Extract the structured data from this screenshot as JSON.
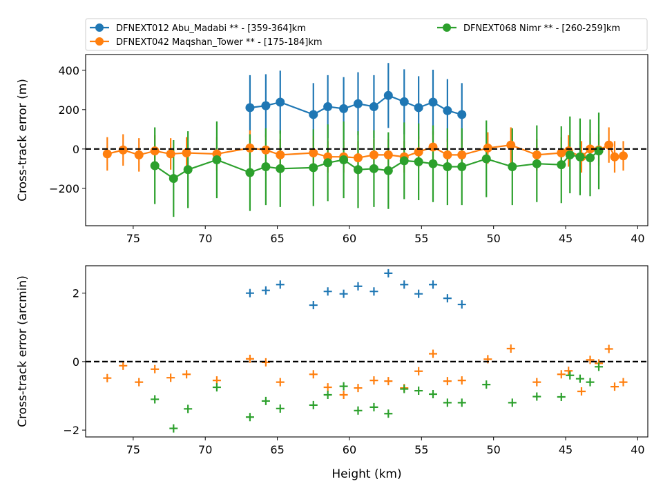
{
  "chart_data": [
    {
      "type": "line",
      "panel": "top",
      "ylabel": "Cross-track error (m)",
      "xlabel": "",
      "x_inverted": true,
      "xlim": [
        78.3,
        39.3
      ],
      "ylim": [
        -390,
        480
      ],
      "xticks": [
        75,
        70,
        65,
        60,
        55,
        50,
        45,
        40
      ],
      "yticks": [
        -200,
        0,
        200,
        400
      ],
      "ytick_labels": [
        "−200",
        "0",
        "200",
        "400"
      ],
      "zero_line": true,
      "legend": {
        "placement": "top",
        "columns": 2,
        "entries": [
          {
            "series": 0,
            "label": "DFNEXT012 Abu_Madabi **  - [359-364]km"
          },
          {
            "series": 1,
            "label": "DFNEXT042 Maqshan_Tower **  - [175-184]km"
          },
          {
            "series": 2,
            "label": "DFNEXT068 Nimr **  - [260-259]km"
          }
        ]
      },
      "series": [
        {
          "name": "DFNEXT012 Abu_Madabi **  - [359-364]km",
          "color": "#1f77b4",
          "x": [
            66.9,
            65.8,
            64.8,
            62.5,
            61.5,
            60.4,
            59.4,
            58.3,
            57.3,
            56.2,
            55.2,
            54.2,
            53.2,
            52.2
          ],
          "y": [
            210,
            220,
            238,
            175,
            215,
            205,
            230,
            215,
            272,
            240,
            210,
            238,
            195,
            175
          ],
          "err": [
            165,
            160,
            160,
            160,
            160,
            160,
            160,
            160,
            165,
            165,
            160,
            165,
            160,
            160
          ]
        },
        {
          "name": "DFNEXT042 Maqshan_Tower **  - [175-184]km",
          "color": "#ff7f0e",
          "x": [
            76.8,
            75.7,
            74.6,
            73.5,
            72.4,
            71.3,
            69.2,
            66.9,
            65.8,
            64.8,
            62.5,
            61.5,
            60.4,
            59.4,
            58.3,
            57.3,
            56.2,
            55.2,
            54.2,
            53.2,
            52.2,
            50.4,
            48.8,
            47.0,
            45.3,
            44.8,
            43.9,
            43.3,
            42.7,
            42.0,
            41.6,
            41.0
          ],
          "y": [
            -25,
            -5,
            -30,
            -10,
            -25,
            -20,
            -25,
            5,
            -5,
            -30,
            -20,
            -40,
            -40,
            -45,
            -30,
            -30,
            -40,
            -15,
            10,
            -30,
            -30,
            5,
            20,
            -30,
            -20,
            -10,
            -40,
            0,
            -5,
            20,
            -40,
            -35
          ],
          "err": [
            85,
            80,
            85,
            80,
            80,
            80,
            85,
            90,
            80,
            80,
            85,
            80,
            80,
            85,
            80,
            80,
            80,
            80,
            80,
            80,
            80,
            80,
            90,
            80,
            80,
            80,
            80,
            80,
            80,
            90,
            80,
            75
          ]
        },
        {
          "name": "DFNEXT068 Nimr **  - [260-259]km",
          "color": "#2ca02c",
          "x": [
            73.5,
            72.2,
            71.2,
            69.2,
            66.9,
            65.8,
            64.8,
            62.5,
            61.5,
            60.4,
            59.4,
            58.3,
            57.3,
            56.2,
            55.2,
            54.2,
            53.2,
            52.2,
            50.5,
            48.7,
            47.0,
            45.3,
            44.7,
            44.0,
            43.3,
            42.7
          ],
          "y": [
            -85,
            -150,
            -105,
            -55,
            -120,
            -90,
            -100,
            -95,
            -70,
            -55,
            -105,
            -100,
            -110,
            -60,
            -65,
            -75,
            -90,
            -90,
            -50,
            -90,
            -75,
            -80,
            -30,
            -40,
            -45,
            -10
          ],
          "err": [
            195,
            195,
            195,
            195,
            195,
            195,
            195,
            195,
            195,
            195,
            195,
            195,
            195,
            195,
            195,
            195,
            195,
            195,
            195,
            195,
            195,
            195,
            195,
            195,
            195,
            195
          ]
        }
      ]
    },
    {
      "type": "scatter",
      "panel": "bottom",
      "ylabel": "Cross-track error (arcmin)",
      "xlabel": "Height (km)",
      "x_inverted": true,
      "xlim": [
        78.3,
        39.3
      ],
      "ylim": [
        -2.2,
        2.8
      ],
      "xticks": [
        75,
        70,
        65,
        60,
        55,
        50,
        45,
        40
      ],
      "yticks": [
        -2,
        0,
        2
      ],
      "ytick_labels": [
        "−2",
        "0",
        "2"
      ],
      "zero_line": true,
      "marker": "+",
      "series": [
        {
          "color": "#1f77b4",
          "x": [
            66.9,
            65.8,
            64.8,
            62.5,
            61.5,
            60.4,
            59.4,
            58.3,
            57.3,
            56.2,
            55.2,
            54.2,
            53.2,
            52.2
          ],
          "y": [
            2.0,
            2.08,
            2.25,
            1.65,
            2.05,
            1.98,
            2.2,
            2.05,
            2.58,
            2.25,
            1.98,
            2.25,
            1.85,
            1.67
          ]
        },
        {
          "color": "#ff7f0e",
          "x": [
            76.8,
            75.7,
            74.6,
            73.5,
            72.4,
            71.3,
            69.2,
            66.9,
            65.8,
            64.8,
            62.5,
            61.5,
            60.4,
            59.4,
            58.3,
            57.3,
            56.2,
            55.2,
            54.2,
            53.2,
            52.2,
            50.4,
            48.8,
            47.0,
            45.3,
            44.8,
            43.9,
            43.3,
            42.7,
            42.0,
            41.6,
            41.0
          ],
          "y": [
            -0.48,
            -0.12,
            -0.6,
            -0.22,
            -0.47,
            -0.37,
            -0.55,
            0.08,
            -0.02,
            -0.6,
            -0.37,
            -0.75,
            -0.97,
            -0.77,
            -0.55,
            -0.57,
            -0.77,
            -0.28,
            0.23,
            -0.57,
            -0.55,
            0.07,
            0.38,
            -0.6,
            -0.37,
            -0.27,
            -0.87,
            0.05,
            -0.05,
            0.37,
            -0.73,
            -0.6
          ]
        },
        {
          "color": "#2ca02c",
          "x": [
            73.5,
            72.2,
            71.2,
            69.2,
            66.9,
            65.8,
            64.8,
            62.5,
            61.5,
            60.4,
            59.4,
            58.3,
            57.3,
            56.2,
            55.2,
            54.2,
            53.2,
            52.2,
            50.5,
            48.7,
            47.0,
            45.3,
            44.7,
            44.0,
            43.3,
            42.7
          ],
          "y": [
            -1.1,
            -1.95,
            -1.38,
            -0.75,
            -1.62,
            -1.15,
            -1.37,
            -1.27,
            -0.97,
            -0.72,
            -1.43,
            -1.33,
            -1.52,
            -0.8,
            -0.85,
            -0.95,
            -1.2,
            -1.2,
            -0.67,
            -1.2,
            -1.02,
            -1.03,
            -0.4,
            -0.5,
            -0.6,
            -0.15
          ]
        }
      ]
    }
  ]
}
